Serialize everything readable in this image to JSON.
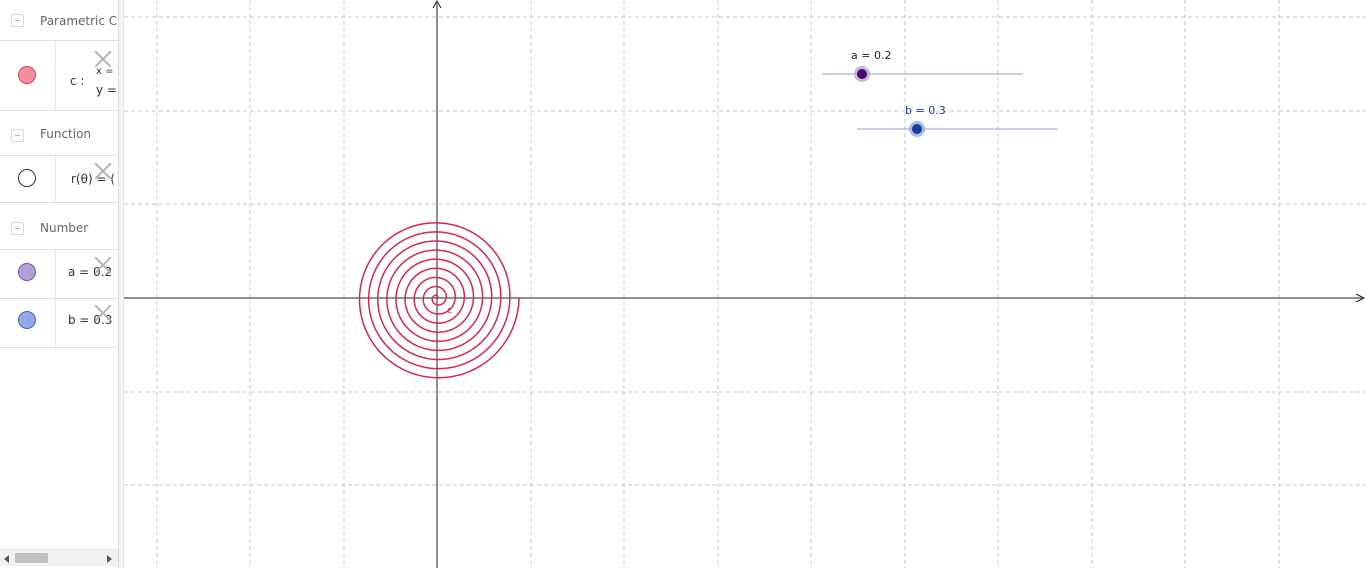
{
  "algebra_view": {
    "groups": [
      {
        "label": "Parametric Cu"
      },
      {
        "label": "Function"
      },
      {
        "label": "Number"
      }
    ],
    "curve_c": {
      "label": "c :",
      "line1": "x =",
      "line2": "y =",
      "color": "#f78da0"
    },
    "function_r": {
      "text": "r(θ) = (",
      "color": "#ffffff"
    },
    "number_a": {
      "text": "a = 0.2",
      "color": "#b59edb"
    },
    "number_b": {
      "text": "b = 0.3",
      "color": "#93a8e6"
    }
  },
  "graphics_view": {
    "spiral_color": "#d6284d",
    "spiral_turns": 9,
    "slider_a": {
      "caption": "a = 0.2",
      "value": 0.2,
      "color": "#4b0a6b"
    },
    "slider_b": {
      "caption": "b = 0.3",
      "value": 0.3,
      "color": "#1a3d9e"
    }
  }
}
